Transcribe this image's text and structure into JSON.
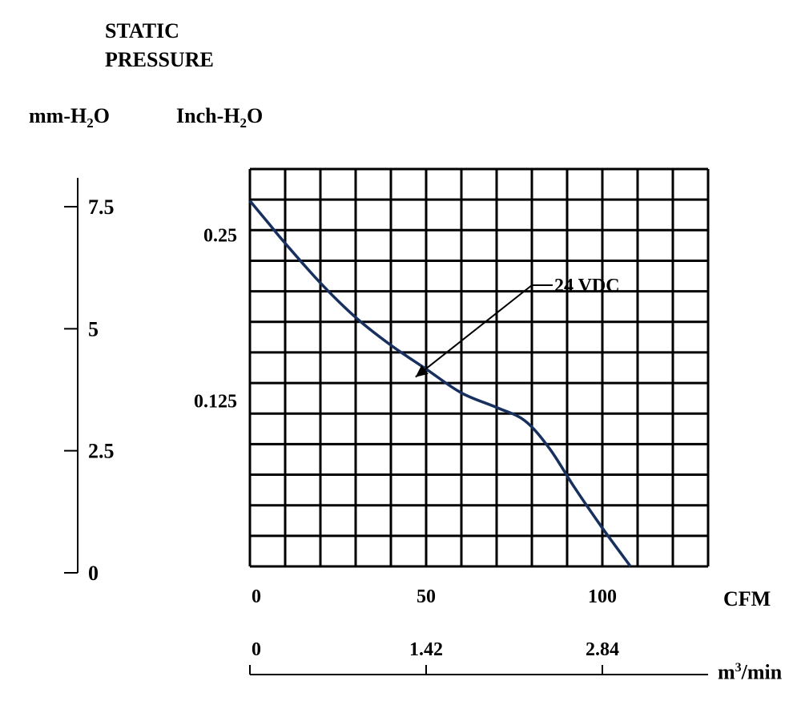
{
  "title": {
    "line1": "STATIC",
    "line2": "PRESSURE"
  },
  "axis_units": {
    "left": {
      "pre": "mm-H",
      "sub": "2",
      "post": "O"
    },
    "inner": {
      "pre": "Inch-H",
      "sub": "2",
      "post": "O"
    },
    "x_primary": "CFM",
    "x_secondary": {
      "pre": "m",
      "sup": "3",
      "post": "/min"
    }
  },
  "colors": {
    "curve": "#17305e",
    "grid": "#000000"
  },
  "chart_data": {
    "type": "line",
    "grid": true,
    "xlim": [
      0,
      130
    ],
    "ylim": [
      0,
      0.3
    ],
    "x_ticks": [
      "0",
      "50",
      "100"
    ],
    "x_tick_values": [
      0,
      50,
      100
    ],
    "x2_ticks": [
      "0",
      "1.42",
      "2.84"
    ],
    "x2_tick_values": [
      0,
      1.42,
      2.84
    ],
    "y_ticks": [
      "0.25",
      "0.125"
    ],
    "y_tick_values": [
      0.25,
      0.125
    ],
    "mm_ticks": [
      "7.5",
      "5",
      "2.5",
      "0"
    ],
    "mm_tick_values": [
      7.5,
      5,
      2.5,
      0
    ],
    "series": [
      {
        "name": "24 VDC",
        "x": [
          0,
          5,
          10,
          20,
          30,
          40,
          50,
          60,
          70,
          78,
          85,
          92,
          100,
          108
        ],
        "y": [
          0.276,
          0.26,
          0.244,
          0.214,
          0.188,
          0.167,
          0.149,
          0.131,
          0.12,
          0.11,
          0.089,
          0.06,
          0.029,
          0.0
        ]
      }
    ],
    "annotations": [
      {
        "text": "24 VDC",
        "target_x": 47,
        "target_y": 0.143
      }
    ]
  }
}
